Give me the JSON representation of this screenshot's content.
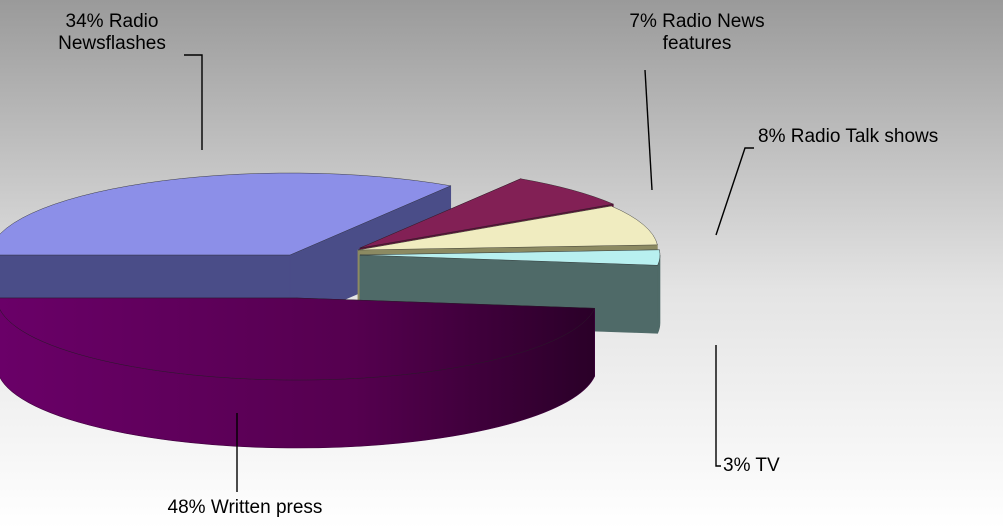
{
  "chart_data": {
    "type": "pie",
    "title": "",
    "style": "3d-exploded",
    "background": "grey-to-white vertical gradient",
    "slices": [
      {
        "key": "written",
        "value": 48,
        "name": "Written press",
        "label_lines": [
          "48% Written press"
        ],
        "color": "#5a0058",
        "side_color": "#3f003d"
      },
      {
        "key": "newsflash",
        "value": 34,
        "name": "Radio Newsflashes",
        "label_lines": [
          "34% Radio",
          "Newsflashes"
        ],
        "color": "#8c8fe8",
        "side_color": "#4a4d88"
      },
      {
        "key": "features",
        "value": 7,
        "name": "Radio News features",
        "label_lines": [
          "7% Radio News",
          "features"
        ],
        "color": "#822055",
        "side_color": "#5a1038"
      },
      {
        "key": "talk",
        "value": 8,
        "name": "Radio Talk shows",
        "label_lines": [
          "8% Radio Talk shows"
        ],
        "color": "#f0ecc0",
        "side_color": "#8c8a62"
      },
      {
        "key": "tv",
        "value": 3,
        "name": "TV",
        "label_lines": [
          "3% TV"
        ],
        "color": "#b8f0f0",
        "side_color": "#4f6a68"
      }
    ]
  }
}
